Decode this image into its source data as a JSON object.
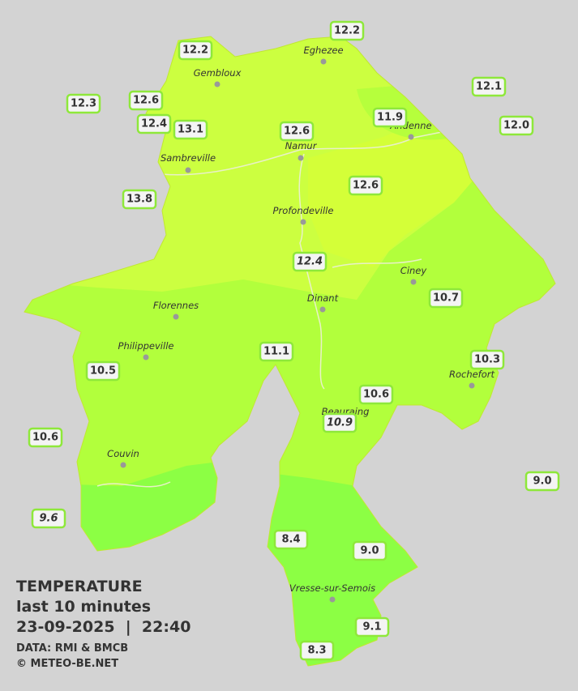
{
  "stations": [
    {
      "value": "12.2"
    },
    {
      "value": "12.2"
    },
    {
      "value": "12.1"
    },
    {
      "value": "12.3"
    },
    {
      "value": "12.6"
    },
    {
      "value": "11.9"
    },
    {
      "value": "12.4"
    },
    {
      "value": "13.1"
    },
    {
      "value": "12.6"
    },
    {
      "value": "12.0"
    },
    {
      "value": "13.8"
    },
    {
      "value": "12.6"
    },
    {
      "value": "12.4"
    },
    {
      "value": "10.7"
    },
    {
      "value": "11.1"
    },
    {
      "value": "10.3"
    },
    {
      "value": "10.5"
    },
    {
      "value": "10.6"
    },
    {
      "value": "10.9"
    },
    {
      "value": "10.6"
    },
    {
      "value": "9.0"
    },
    {
      "value": "9.6"
    },
    {
      "value": "8.4"
    },
    {
      "value": "9.0"
    },
    {
      "value": "9.1"
    },
    {
      "value": "8.3"
    }
  ],
  "towns": [
    "Eghezee",
    "Gembloux",
    "Andenne",
    "Namur",
    "Sambreville",
    "Profondeville",
    "Ciney",
    "Dinant",
    "Florennes",
    "Philippeville",
    "Rochefort",
    "Beauraing",
    "Couvin",
    "Vresse-sur-Semois"
  ],
  "info": {
    "title": "TEMPERATURE",
    "period": "last 10 minutes",
    "datetime": "23-09-2025  |  22:40",
    "source": "DATA: RMI & BMCB",
    "credit": "© METEO-BE.NET"
  }
}
